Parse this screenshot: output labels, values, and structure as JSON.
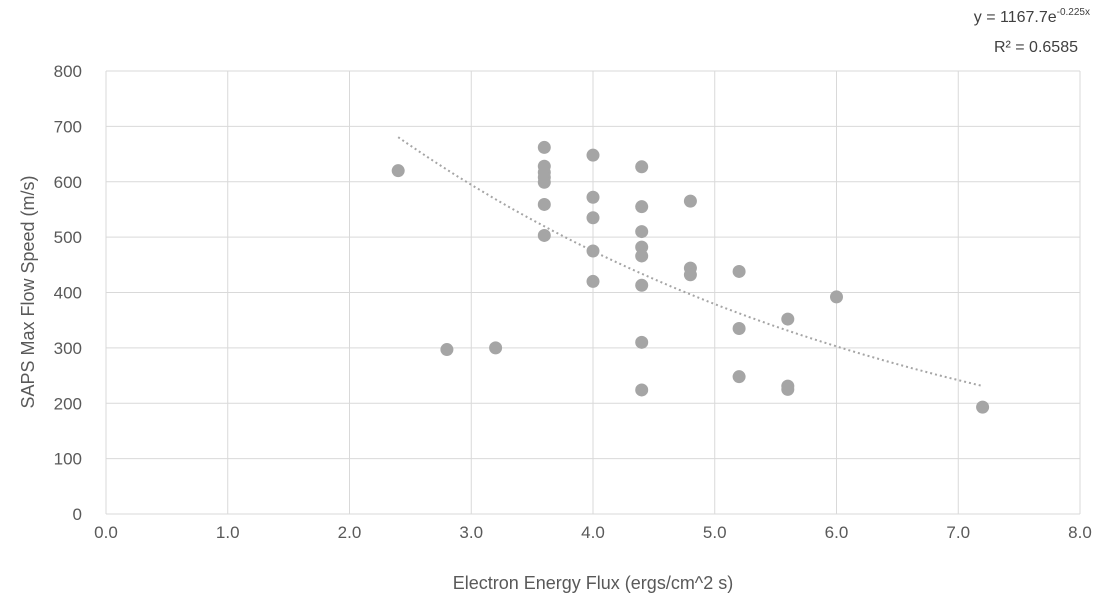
{
  "chart_data": {
    "type": "scatter",
    "xlabel": "Electron Energy Flux (ergs/cm^2 s)",
    "ylabel": "SAPS Max Flow Speed (m/s)",
    "xlim": [
      0,
      8
    ],
    "ylim": [
      0,
      800
    ],
    "x_ticks": [
      "0.0",
      "1.0",
      "2.0",
      "3.0",
      "4.0",
      "5.0",
      "6.0",
      "7.0",
      "8.0"
    ],
    "y_ticks": [
      "0",
      "100",
      "200",
      "300",
      "400",
      "500",
      "600",
      "700",
      "800"
    ],
    "grid": "vertical and horizontal major gridlines",
    "marker_color": "#a5a5a5",
    "trendline_color": "#a5a5a5",
    "points": [
      {
        "x": 2.4,
        "y": 620
      },
      {
        "x": 2.8,
        "y": 297
      },
      {
        "x": 3.2,
        "y": 300
      },
      {
        "x": 3.6,
        "y": 662
      },
      {
        "x": 3.6,
        "y": 628
      },
      {
        "x": 3.6,
        "y": 617
      },
      {
        "x": 3.6,
        "y": 608
      },
      {
        "x": 3.6,
        "y": 599
      },
      {
        "x": 3.6,
        "y": 559
      },
      {
        "x": 3.6,
        "y": 503
      },
      {
        "x": 4.0,
        "y": 648
      },
      {
        "x": 4.0,
        "y": 572
      },
      {
        "x": 4.0,
        "y": 535
      },
      {
        "x": 4.0,
        "y": 475
      },
      {
        "x": 4.0,
        "y": 420
      },
      {
        "x": 4.4,
        "y": 627
      },
      {
        "x": 4.4,
        "y": 555
      },
      {
        "x": 4.4,
        "y": 510
      },
      {
        "x": 4.4,
        "y": 482
      },
      {
        "x": 4.4,
        "y": 466
      },
      {
        "x": 4.4,
        "y": 413
      },
      {
        "x": 4.4,
        "y": 310
      },
      {
        "x": 4.4,
        "y": 224
      },
      {
        "x": 4.8,
        "y": 565
      },
      {
        "x": 4.8,
        "y": 444
      },
      {
        "x": 4.8,
        "y": 432
      },
      {
        "x": 5.2,
        "y": 438
      },
      {
        "x": 5.2,
        "y": 335
      },
      {
        "x": 5.2,
        "y": 248
      },
      {
        "x": 5.6,
        "y": 352
      },
      {
        "x": 5.6,
        "y": 231
      },
      {
        "x": 5.6,
        "y": 225
      },
      {
        "x": 6.0,
        "y": 392
      },
      {
        "x": 7.2,
        "y": 193
      }
    ],
    "trendline": {
      "type": "exponential",
      "a": 1167.7,
      "b": -0.225,
      "x_range": [
        2.4,
        7.2
      ],
      "equation_base": "y = 1167.7e",
      "equation_exponent": "-0.225x",
      "r_squared_label": "R² = 0.6585"
    }
  }
}
